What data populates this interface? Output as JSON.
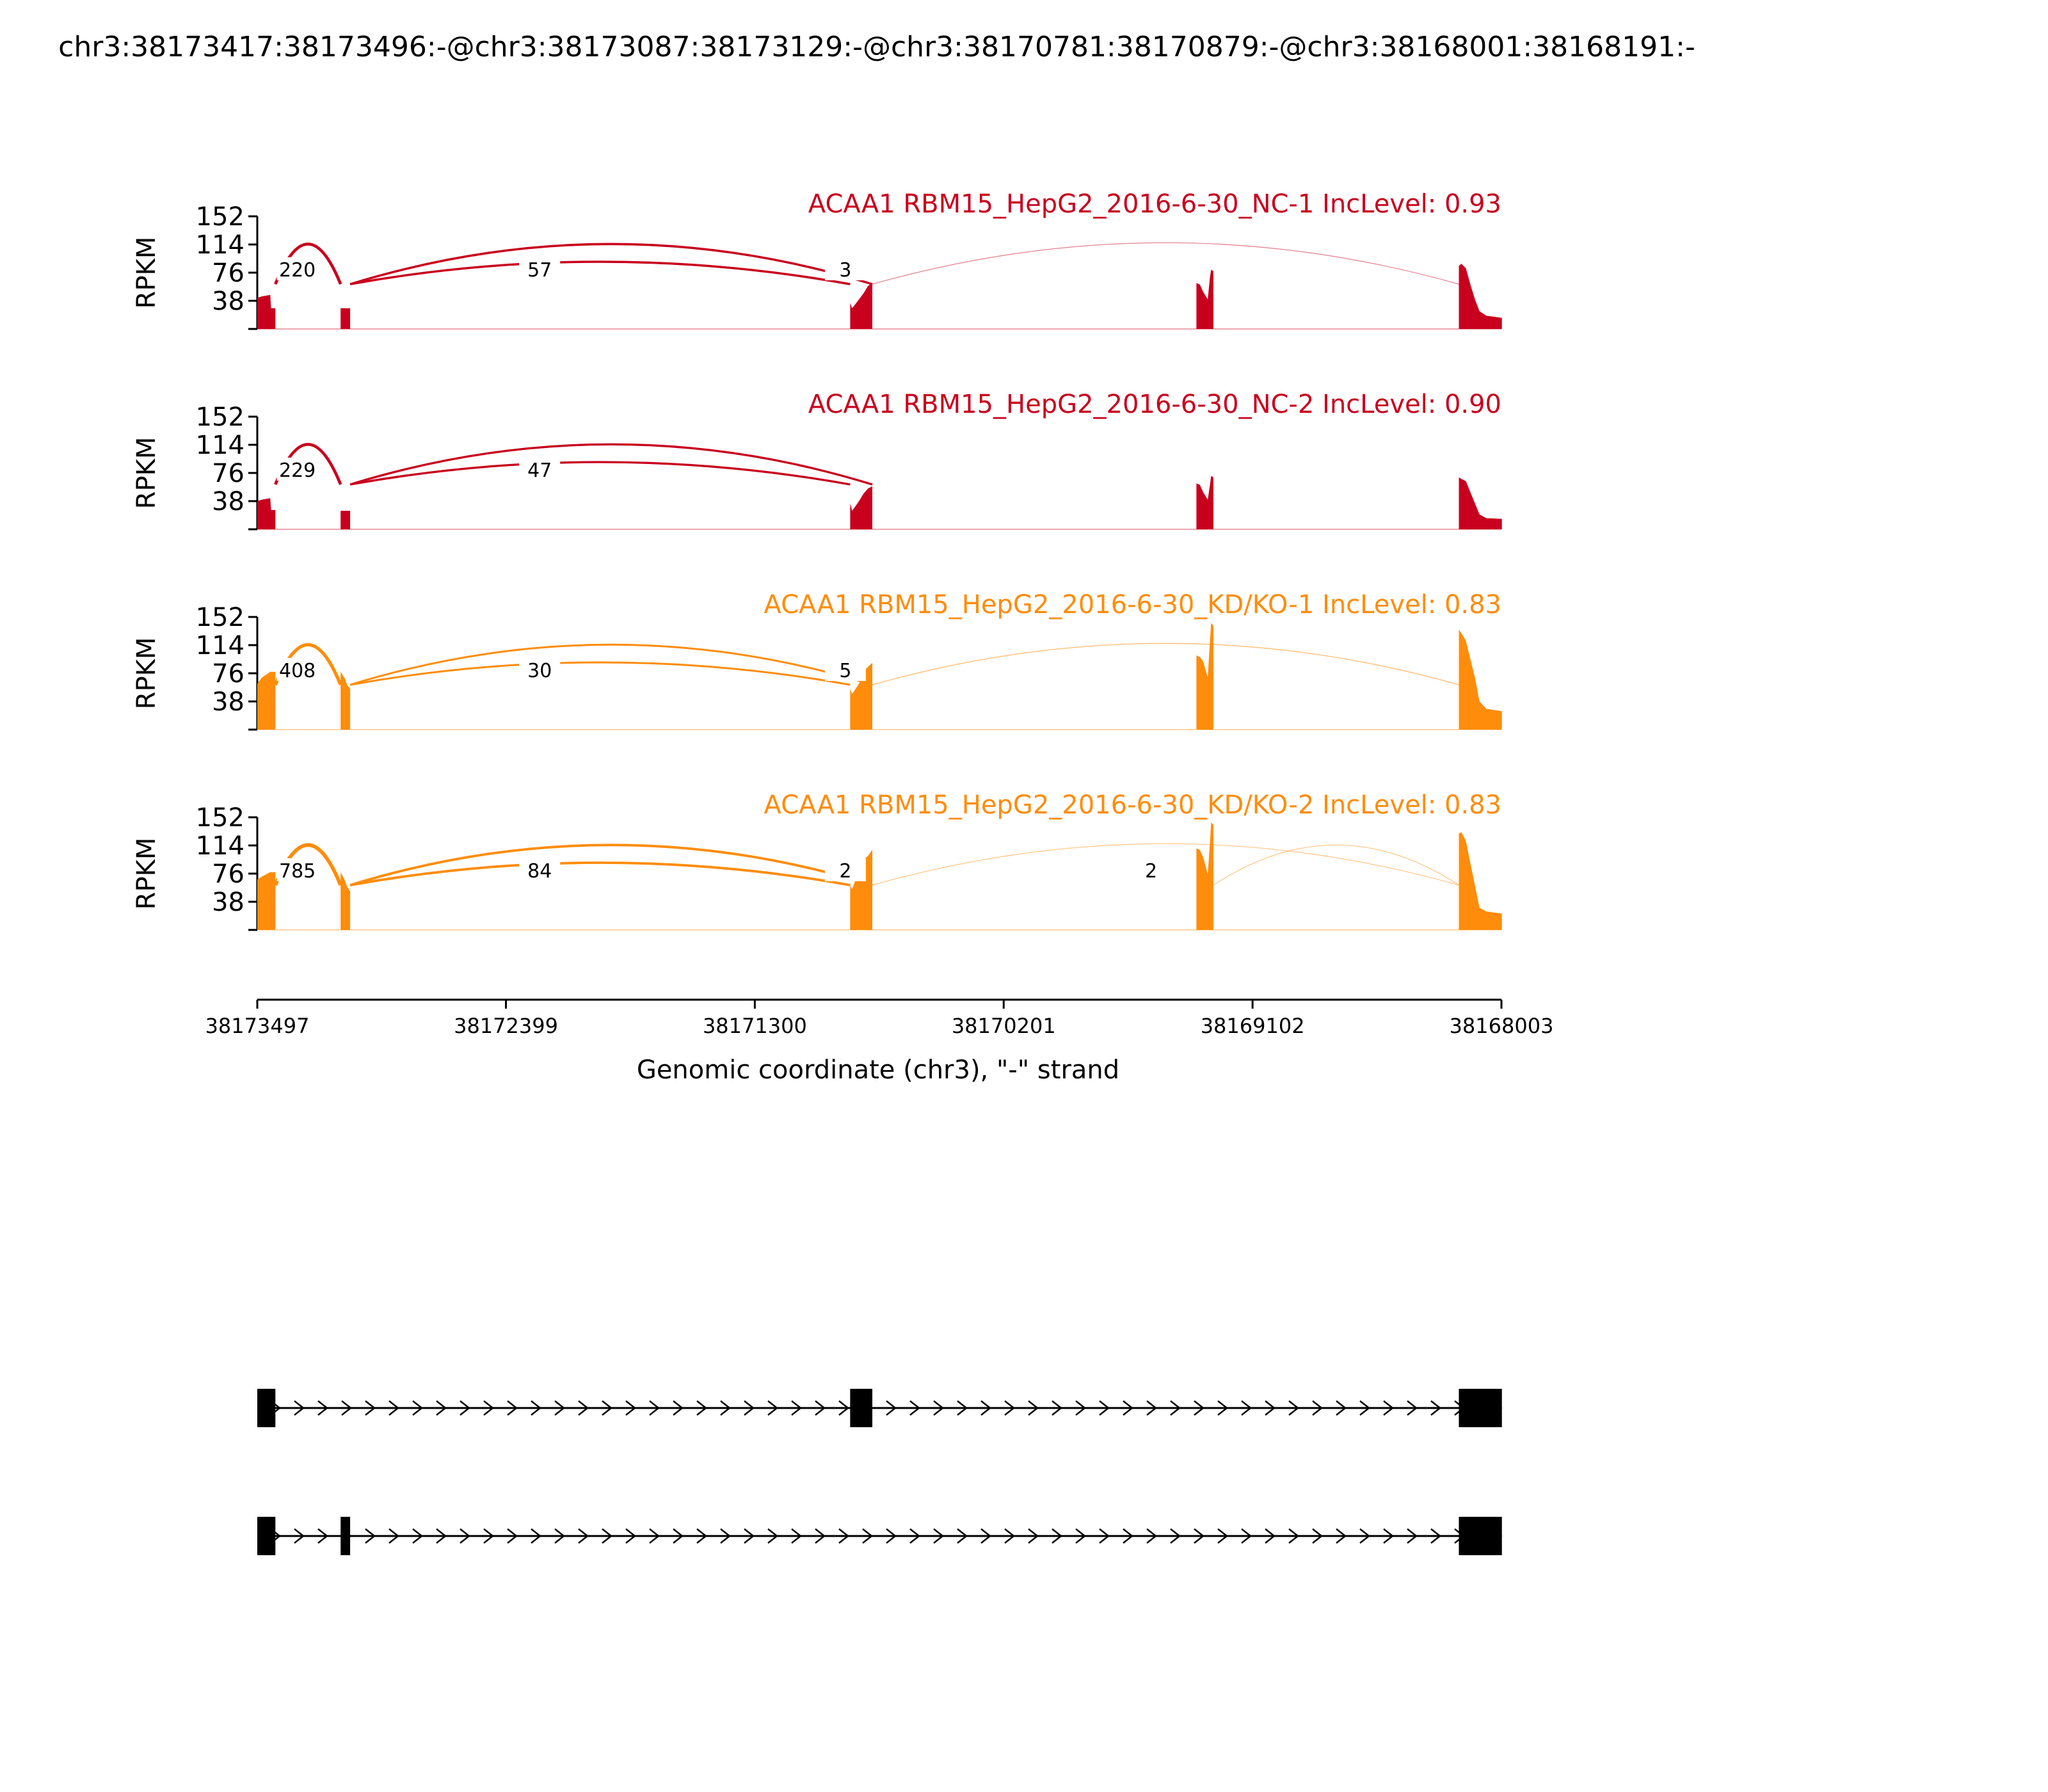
{
  "chart_data": {
    "type": "area",
    "title": "chr3:38173417:38173496:-@chr3:38173087:38173129:-@chr3:38170781:38170879:-@chr3:38168001:38168191:-",
    "ylabel": "RPKM",
    "yticks": [
      38,
      76,
      114,
      152
    ],
    "ylim": [
      0,
      152
    ],
    "x_axis": {
      "label": "Genomic coordinate (chr3), \"-\" strand",
      "range": [
        38173497,
        38168003
      ],
      "ticks": [
        38173497,
        38172399,
        38171300,
        38170201,
        38169102,
        38168003
      ]
    },
    "tracks": [
      {
        "label": "ACAA1 RBM15_HepG2_2016-6-30_NC-1 IncLevel: 0.93",
        "color": "#c8001e",
        "coverage": [
          {
            "x": [
              38173497,
              38173477,
              38173440,
              38173436,
              38173417
            ],
            "y": [
              42,
              44,
              46,
              28,
              28
            ]
          },
          {
            "x": [
              38173129,
              38173087
            ],
            "y": [
              28,
              28
            ]
          },
          {
            "x": [
              38170879,
              38170870,
              38170840,
              38170820,
              38170800,
              38170781
            ],
            "y": [
              35,
              28,
              40,
              48,
              58,
              62
            ]
          },
          {
            "x": [
              38169350,
              38169335,
              38169320,
              38169300,
              38169290,
              38169285,
              38169275
            ],
            "y": [
              62,
              60,
              50,
              40,
              70,
              80,
              78
            ]
          },
          {
            "x": [
              38168191,
              38168180,
              38168160,
              38168140,
              38168120,
              38168100,
              38168070,
              38168001
            ],
            "y": [
              85,
              88,
              82,
              60,
              40,
              24,
              18,
              15
            ]
          }
        ],
        "junctions": [
          {
            "from": 38173417,
            "to": 38173129,
            "count": "220",
            "weight": 220,
            "arc": "below",
            "count_at": 38173320
          },
          {
            "from": 38173087,
            "to": 38170879,
            "count": "57",
            "weight": 57,
            "arc": "above",
            "count_at": 38172250
          },
          {
            "from": 38173087,
            "to": 38170781,
            "count": "57",
            "weight": 57,
            "arc": "below",
            "count_at": null
          },
          {
            "from": 38170781,
            "to": 38168191,
            "count": "3",
            "weight": 3,
            "arc": "below",
            "count_at": 38170900
          }
        ]
      },
      {
        "label": "ACAA1 RBM15_HepG2_2016-6-30_NC-2 IncLevel: 0.90",
        "color": "#c8001e",
        "coverage": [
          {
            "x": [
              38173497,
              38173477,
              38173440,
              38173436,
              38173417
            ],
            "y": [
              38,
              40,
              42,
              26,
              26
            ]
          },
          {
            "x": [
              38173129,
              38173087
            ],
            "y": [
              25,
              25
            ]
          },
          {
            "x": [
              38170879,
              38170870,
              38170840,
              38170820,
              38170800,
              38170781
            ],
            "y": [
              35,
              25,
              38,
              48,
              55,
              58
            ]
          },
          {
            "x": [
              38169350,
              38169335,
              38169320,
              38169300,
              38169290,
              38169285,
              38169275
            ],
            "y": [
              62,
              60,
              50,
              40,
              60,
              72,
              70
            ]
          },
          {
            "x": [
              38168191,
              38168180,
              38168160,
              38168140,
              38168120,
              38168100,
              38168070,
              38168001
            ],
            "y": [
              70,
              68,
              65,
              50,
              35,
              20,
              15,
              14
            ]
          }
        ],
        "junctions": [
          {
            "from": 38173417,
            "to": 38173129,
            "count": "229",
            "weight": 229,
            "arc": "below",
            "count_at": 38173320
          },
          {
            "from": 38173087,
            "to": 38170879,
            "count": "47",
            "weight": 47,
            "arc": "above",
            "count_at": 38172250
          },
          {
            "from": 38173087,
            "to": 38170781,
            "count": "47",
            "weight": 47,
            "arc": "below",
            "count_at": null
          }
        ]
      },
      {
        "label": "ACAA1 RBM15_HepG2_2016-6-30_KD/KO-1 IncLevel: 0.83",
        "color": "#ff8c0a",
        "coverage": [
          {
            "x": [
              38173497,
              38173477,
              38173440,
              38173436,
              38173417
            ],
            "y": [
              62,
              70,
              78,
              78,
              78
            ]
          },
          {
            "x": [
              38173129,
              38173112,
              38173100,
              38173087
            ],
            "y": [
              78,
              70,
              60,
              55
            ]
          },
          {
            "x": [
              38170879,
              38170870,
              38170840,
              38170820,
              38170800,
              38170781
            ],
            "y": [
              55,
              48,
              62,
              78,
              85,
              90
            ]
          },
          {
            "x": [
              38169350,
              38169335,
              38169320,
              38169300,
              38169290,
              38169285,
              38169275
            ],
            "y": [
              100,
              98,
              92,
              70,
              120,
              144,
              140
            ]
          },
          {
            "x": [
              38168191,
              38168180,
              38168160,
              38168140,
              38168120,
              38168100,
              38168070,
              38168001
            ],
            "y": [
              135,
              130,
              120,
              95,
              70,
              38,
              28,
              25
            ]
          }
        ],
        "junctions": [
          {
            "from": 38173417,
            "to": 38173129,
            "count": "408",
            "weight": 408,
            "arc": "below",
            "count_at": 38173320
          },
          {
            "from": 38173087,
            "to": 38170879,
            "count": "30",
            "weight": 30,
            "arc": "above",
            "count_at": 38172250
          },
          {
            "from": 38173087,
            "to": 38170781,
            "count": "30",
            "weight": 30,
            "arc": "below",
            "count_at": null
          },
          {
            "from": 38170781,
            "to": 38168191,
            "count": "5",
            "weight": 5,
            "arc": "below",
            "count_at": 38170900
          }
        ]
      },
      {
        "label": "ACAA1 RBM15_HepG2_2016-6-30_KD/KO-2 IncLevel: 0.83",
        "color": "#ff8c0a",
        "coverage": [
          {
            "x": [
              38173497,
              38173477,
              38173440,
              38173436,
              38173417
            ],
            "y": [
              68,
              72,
              78,
              78,
              78
            ]
          },
          {
            "x": [
              38173129,
              38173112,
              38173100,
              38173087
            ],
            "y": [
              78,
              68,
              58,
              52
            ]
          },
          {
            "x": [
              38170879,
              38170870,
              38170840,
              38170820,
              38170800,
              38170781
            ],
            "y": [
              60,
              55,
              80,
              95,
              100,
              108
            ]
          },
          {
            "x": [
              38169350,
              38169335,
              38169320,
              38169300,
              38169290,
              38169285,
              38169275
            ],
            "y": [
              110,
              108,
              98,
              75,
              118,
              145,
              142
            ]
          },
          {
            "x": [
              38168191,
              38168180,
              38168160,
              38168140,
              38168120,
              38168100,
              38168070,
              38168001
            ],
            "y": [
              130,
              132,
              120,
              90,
              60,
              30,
              25,
              22
            ]
          }
        ],
        "junctions": [
          {
            "from": 38173417,
            "to": 38173129,
            "count": "785",
            "weight": 785,
            "arc": "below",
            "count_at": 38173320
          },
          {
            "from": 38173087,
            "to": 38170879,
            "count": "84",
            "weight": 84,
            "arc": "above",
            "count_at": 38172250
          },
          {
            "from": 38173087,
            "to": 38170781,
            "count": "84",
            "weight": 84,
            "arc": "below",
            "count_at": null
          },
          {
            "from": 38170781,
            "to": 38168191,
            "count": "2",
            "weight": 2,
            "arc": "below",
            "count_at": 38170900
          },
          {
            "from": 38169275,
            "to": 38168191,
            "count": "2",
            "weight": 2,
            "arc": "below",
            "count_at": 38169550
          }
        ]
      }
    ],
    "isoforms": [
      {
        "exons": [
          [
            38173497,
            38173417
          ],
          [
            38170879,
            38170781
          ],
          [
            38168191,
            38168001
          ]
        ]
      },
      {
        "exons": [
          [
            38173497,
            38173417
          ],
          [
            38173129,
            38173087
          ],
          [
            38168191,
            38168001
          ]
        ]
      }
    ]
  }
}
